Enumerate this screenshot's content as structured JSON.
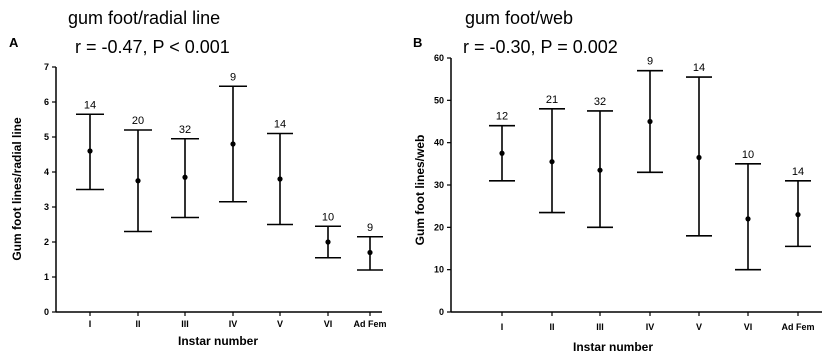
{
  "chart_data": [
    {
      "type": "errorbar",
      "panel": "A",
      "title": "gum foot/radial line",
      "stats": "r = -0.47, P < 0.001",
      "xlabel": "Instar number",
      "ylabel": "Gum foot lines/radial line",
      "ylim": [
        0,
        7
      ],
      "yticks": [
        0,
        1,
        2,
        3,
        4,
        5,
        6,
        7
      ],
      "categories": [
        "I",
        "II",
        "III",
        "IV",
        "V",
        "VI",
        "Ad Fem"
      ],
      "mean": [
        4.6,
        3.75,
        3.85,
        4.8,
        3.8,
        2.0,
        1.7
      ],
      "upper": [
        5.65,
        5.2,
        4.95,
        6.45,
        5.1,
        2.45,
        2.15
      ],
      "lower": [
        3.5,
        2.3,
        2.7,
        3.15,
        2.5,
        1.55,
        1.2
      ],
      "n": [
        "14",
        "20",
        "32",
        "9",
        "14",
        "10",
        "9"
      ]
    },
    {
      "type": "errorbar",
      "panel": "B",
      "title": "gum foot/web",
      "stats": "r = -0.30, P = 0.002",
      "xlabel": "Instar number",
      "ylabel": "Gum foot lines/web",
      "ylim": [
        0,
        60
      ],
      "yticks": [
        0,
        10,
        20,
        30,
        40,
        50,
        60
      ],
      "categories": [
        "I",
        "II",
        "III",
        "IV",
        "V",
        "VI",
        "Ad Fem"
      ],
      "mean": [
        37.5,
        35.5,
        33.5,
        45.0,
        36.5,
        22.0,
        23.0
      ],
      "upper": [
        44.0,
        48.0,
        47.5,
        57.0,
        55.5,
        35.0,
        31.0
      ],
      "lower": [
        31.0,
        23.5,
        20.0,
        33.0,
        18.0,
        10.0,
        15.5
      ],
      "n": [
        "12",
        "21",
        "32",
        "9",
        "14",
        "10",
        "14"
      ]
    }
  ]
}
